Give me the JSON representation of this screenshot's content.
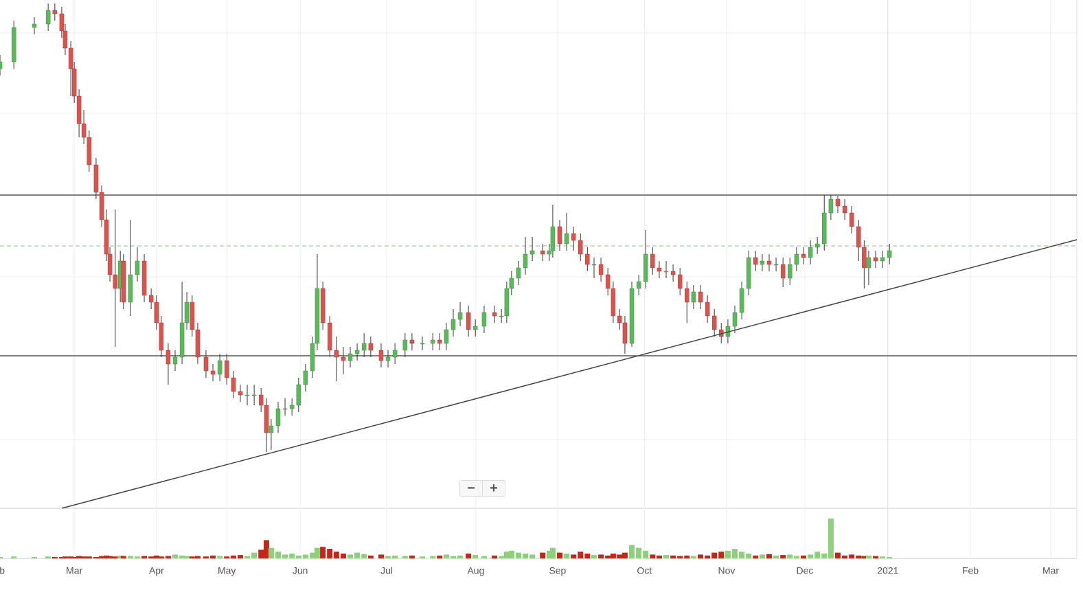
{
  "chart_data": {
    "type": "candlestick",
    "x": [
      1.3,
      6.5,
      14.2,
      19.4,
      21.9,
      24.5,
      25.8,
      27.9,
      29.2,
      31,
      32.8,
      34.8,
      37.4,
      39.5,
      41.3,
      42.6,
      44.6,
      46.5,
      47.7,
      50.3,
      52.9,
      55.5,
      58.1,
      60.1,
      61.9,
      64.5,
      67.1,
      69.7,
      71.5,
      73.5,
      75.6,
      78.7,
      81.3,
      83.9,
      86.5,
      89,
      91.6,
      94.2,
      96.8,
      99.4,
      101.4,
      103.2,
      105.8,
      108.4,
      111,
      113.5,
      116.1,
      118.7,
      120.5,
      122.6,
      125.2,
      127.7,
      130.3,
      132.9,
      135.5,
      138.1,
      140.6,
      144.5,
      147.1,
      149.7,
      153.5,
      156.1,
      160,
      163.9,
      166.5,
      169,
      171.6,
      174.2,
      177.3,
      179.9,
      183.2,
      187.1,
      189.7,
      191.7,
      193.5,
      196.1,
      198.7,
      201.3,
      205.2,
      207.7,
      209,
      211.6,
      214.2,
      216.8,
      219.4,
      222,
      224.5,
      227.1,
      229.7,
      231.7,
      234.1,
      236.1,
      238.7,
      241.3,
      243.9,
      246.5,
      249,
      251.6,
      254.2,
      256.8,
      259.4,
      261.9,
      264.5,
      267.1,
      269.7,
      272.3,
      274.8,
      277.4,
      280,
      282.6,
      285.2,
      287.7,
      290.3,
      292.9,
      295.5,
      298.1,
      300.6,
      303.2,
      305.8,
      308.4,
      311,
      313.5,
      316.1,
      318.7,
      321.3,
      323.9,
      326,
      327.7,
      330.3,
      332.9,
      335.5
    ],
    "open": [
      640,
      650,
      700,
      705,
      725,
      720,
      695,
      670,
      640,
      600,
      560,
      540,
      500,
      460,
      420,
      370,
      340,
      320,
      360,
      300,
      340,
      360,
      310,
      300,
      270,
      230,
      210,
      220,
      270,
      300,
      260,
      220,
      200,
      195,
      215,
      190,
      170,
      165,
      165,
      165,
      150,
      110,
      120,
      145,
      145,
      150,
      180,
      200,
      240,
      320,
      270,
      230,
      220,
      215,
      225,
      230,
      240,
      230,
      215,
      220,
      230,
      245,
      240,
      240,
      245,
      240,
      260,
      275,
      285,
      260,
      265,
      285,
      280,
      280,
      320,
      335,
      350,
      370,
      375,
      370,
      375,
      410,
      385,
      400,
      390,
      370,
      355,
      355,
      340,
      320,
      280,
      270,
      240,
      320,
      330,
      370,
      350,
      345,
      345,
      340,
      320,
      300,
      315,
      300,
      280,
      260,
      250,
      265,
      285,
      320,
      365,
      355,
      360,
      355,
      355,
      335,
      355,
      370,
      365,
      380,
      385,
      430,
      450,
      440,
      430,
      410,
      380,
      350,
      365,
      360,
      365
    ],
    "high": [
      660,
      710,
      715,
      735,
      735,
      730,
      705,
      680,
      650,
      610,
      580,
      550,
      510,
      470,
      435,
      380,
      435,
      375,
      370,
      420,
      380,
      370,
      320,
      310,
      280,
      240,
      230,
      330,
      315,
      310,
      270,
      230,
      210,
      225,
      225,
      200,
      180,
      180,
      180,
      175,
      160,
      130,
      155,
      160,
      160,
      190,
      210,
      250,
      370,
      330,
      280,
      250,
      235,
      235,
      240,
      255,
      250,
      240,
      230,
      240,
      255,
      255,
      250,
      255,
      255,
      270,
      290,
      300,
      295,
      275,
      295,
      295,
      290,
      330,
      345,
      360,
      395,
      395,
      385,
      385,
      442,
      420,
      430,
      410,
      400,
      380,
      365,
      365,
      350,
      330,
      290,
      280,
      330,
      340,
      405,
      380,
      360,
      360,
      355,
      350,
      330,
      325,
      325,
      310,
      290,
      270,
      275,
      295,
      330,
      375,
      375,
      370,
      370,
      365,
      365,
      365,
      380,
      380,
      390,
      395,
      456,
      456,
      455,
      450,
      440,
      420,
      390,
      375,
      375,
      375,
      385
    ],
    "low": [
      630,
      640,
      690,
      695,
      710,
      685,
      660,
      600,
      590,
      540,
      530,
      490,
      450,
      410,
      360,
      330,
      235,
      300,
      290,
      280,
      330,
      300,
      290,
      260,
      220,
      180,
      200,
      210,
      260,
      250,
      210,
      190,
      185,
      185,
      180,
      160,
      155,
      150,
      150,
      140,
      82,
      85,
      110,
      135,
      135,
      140,
      170,
      190,
      230,
      260,
      220,
      185,
      195,
      205,
      215,
      220,
      220,
      205,
      205,
      210,
      220,
      230,
      230,
      230,
      230,
      230,
      250,
      265,
      250,
      250,
      255,
      270,
      270,
      270,
      310,
      325,
      340,
      360,
      360,
      360,
      365,
      375,
      375,
      375,
      360,
      345,
      335,
      330,
      310,
      270,
      260,
      225,
      235,
      310,
      320,
      340,
      335,
      335,
      330,
      310,
      270,
      290,
      290,
      270,
      250,
      240,
      240,
      255,
      275,
      310,
      345,
      345,
      345,
      345,
      322,
      325,
      345,
      355,
      355,
      370,
      375,
      420,
      430,
      420,
      400,
      360,
      320,
      325,
      350,
      350,
      355
    ],
    "close": [
      650,
      700,
      705,
      725,
      720,
      695,
      670,
      640,
      600,
      560,
      540,
      500,
      460,
      420,
      370,
      340,
      320,
      360,
      300,
      340,
      360,
      310,
      300,
      270,
      230,
      210,
      220,
      270,
      300,
      260,
      220,
      200,
      195,
      215,
      190,
      170,
      165,
      165,
      165,
      150,
      110,
      120,
      145,
      145,
      150,
      180,
      200,
      240,
      320,
      270,
      230,
      220,
      215,
      225,
      230,
      240,
      230,
      215,
      220,
      230,
      245,
      240,
      240,
      245,
      240,
      260,
      275,
      285,
      260,
      265,
      285,
      280,
      280,
      320,
      335,
      350,
      370,
      375,
      370,
      375,
      410,
      385,
      400,
      390,
      370,
      355,
      355,
      340,
      320,
      280,
      270,
      240,
      320,
      330,
      370,
      350,
      345,
      345,
      340,
      320,
      300,
      315,
      300,
      280,
      260,
      250,
      265,
      285,
      320,
      365,
      355,
      360,
      355,
      355,
      335,
      355,
      370,
      365,
      380,
      385,
      430,
      450,
      440,
      430,
      410,
      380,
      350,
      365,
      360,
      365,
      375
    ],
    "volume": [
      3,
      4,
      3,
      4,
      3,
      3,
      4,
      4,
      3,
      5,
      4,
      4,
      3,
      5,
      6,
      5,
      4,
      6,
      5,
      5,
      4,
      5,
      4,
      6,
      4,
      5,
      8,
      6,
      5,
      4,
      5,
      4,
      6,
      5,
      4,
      6,
      7,
      5,
      12,
      18,
      38,
      22,
      14,
      8,
      10,
      6,
      8,
      12,
      22,
      24,
      20,
      14,
      10,
      8,
      12,
      9,
      6,
      8,
      5,
      6,
      5,
      6,
      4,
      5,
      6,
      8,
      5,
      6,
      10,
      7,
      5,
      6,
      5,
      14,
      16,
      12,
      10,
      8,
      12,
      16,
      22,
      12,
      10,
      8,
      14,
      10,
      7,
      8,
      6,
      10,
      8,
      12,
      28,
      22,
      16,
      8,
      6,
      7,
      6,
      5,
      6,
      5,
      8,
      6,
      12,
      14,
      16,
      20,
      14,
      10,
      6,
      8,
      9,
      6,
      7,
      8,
      5,
      6,
      8,
      14,
      10,
      83,
      12,
      6,
      8,
      6,
      5,
      6,
      5,
      4,
      3
    ],
    "xlim": [
      1.3,
      405.9
    ],
    "ylim": [
      0,
      740
    ],
    "volume_ylim": [
      0,
      100
    ],
    "xticks": [
      {
        "value": 0,
        "label": "Feb"
      },
      {
        "value": 29.2,
        "label": "Mar"
      },
      {
        "value": 60.1,
        "label": "Apr"
      },
      {
        "value": 86.5,
        "label": "May"
      },
      {
        "value": 114.1,
        "label": "Jun"
      },
      {
        "value": 146.6,
        "label": "Jul"
      },
      {
        "value": 180.1,
        "label": "Aug"
      },
      {
        "value": 210.8,
        "label": "Sep"
      },
      {
        "value": 243.4,
        "label": "Oct"
      },
      {
        "value": 274.3,
        "label": "Nov"
      },
      {
        "value": 303.7,
        "label": "Dec"
      },
      {
        "value": 334.9,
        "label": "2021"
      },
      {
        "value": 365.9,
        "label": "Feb"
      },
      {
        "value": 396.1,
        "label": "Mar"
      }
    ],
    "up_color": "#5cb85c",
    "down_color": "#d9534f",
    "volume_up_color": "#8fd07f",
    "volume_down_color": "#c0281c",
    "resistance": 456,
    "support": 222,
    "last_price": 382,
    "trendline": {
      "x": [
        24.5,
        405.9
      ],
      "y": [
        0,
        391
      ]
    }
  },
  "controls": {
    "zoom_out": "−",
    "zoom_in": "+"
  }
}
